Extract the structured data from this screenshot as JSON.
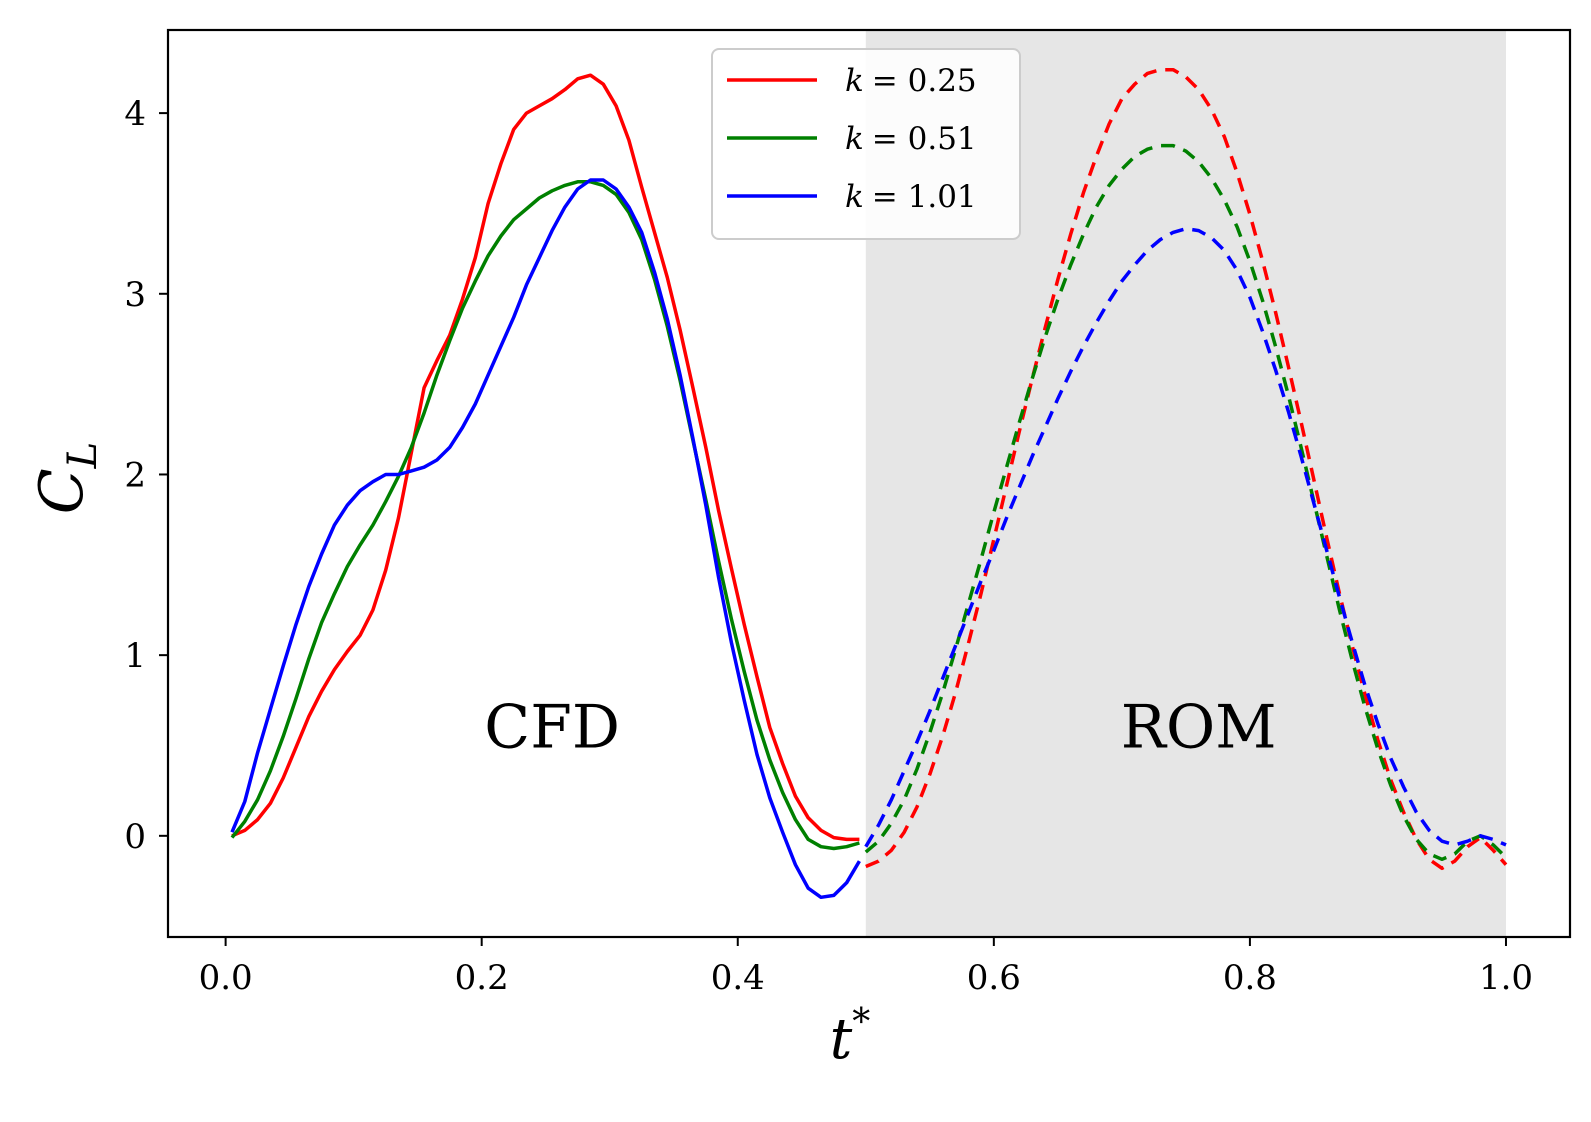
{
  "chart_data": {
    "type": "line",
    "xlabel": "t",
    "xlabel_superscript": "*",
    "ylabel": "C",
    "ylabel_subscript": "L",
    "xlim": [
      -0.045,
      1.05
    ],
    "ylim": [
      -0.56,
      4.46
    ],
    "xticks": [
      0.0,
      0.2,
      0.4,
      0.6,
      0.8,
      1.0
    ],
    "xtick_labels": [
      "0.0",
      "0.2",
      "0.4",
      "0.6",
      "0.8",
      "1.0"
    ],
    "yticks": [
      0,
      1,
      2,
      3,
      4
    ],
    "ytick_labels": [
      "0",
      "1",
      "2",
      "3",
      "4"
    ],
    "shaded_region": {
      "x_start": 0.5,
      "x_end": 1.0,
      "color": "#e6e6e6"
    },
    "annotations": [
      {
        "text": "CFD",
        "x": 0.255,
        "y": 0.6
      },
      {
        "text": "ROM",
        "x": 0.76,
        "y": 0.6
      }
    ],
    "legend": {
      "location": "upper-center",
      "entries": [
        {
          "label_var": "k",
          "label_value": "= 0.25",
          "color": "#ff0000"
        },
        {
          "label_var": "k",
          "label_value": "= 0.51",
          "color": "#008000"
        },
        {
          "label_var": "k",
          "label_value": "= 1.01",
          "color": "#0000ff"
        }
      ]
    },
    "series": [
      {
        "name": "k = 0.25",
        "color": "#ff0000",
        "cfd": {
          "x": [
            0.005,
            0.015,
            0.025,
            0.035,
            0.045,
            0.055,
            0.065,
            0.075,
            0.085,
            0.095,
            0.105,
            0.115,
            0.125,
            0.135,
            0.145,
            0.155,
            0.165,
            0.175,
            0.185,
            0.195,
            0.205,
            0.215,
            0.225,
            0.235,
            0.245,
            0.255,
            0.265,
            0.275,
            0.285,
            0.295,
            0.305,
            0.315,
            0.325,
            0.335,
            0.345,
            0.355,
            0.365,
            0.375,
            0.385,
            0.395,
            0.405,
            0.415,
            0.425,
            0.435,
            0.445,
            0.455,
            0.465,
            0.475,
            0.485,
            0.495
          ],
          "y": [
            0.0,
            0.03,
            0.09,
            0.18,
            0.32,
            0.49,
            0.66,
            0.8,
            0.92,
            1.02,
            1.11,
            1.25,
            1.47,
            1.76,
            2.12,
            2.48,
            2.63,
            2.77,
            2.97,
            3.2,
            3.5,
            3.72,
            3.91,
            4.0,
            4.04,
            4.08,
            4.13,
            4.19,
            4.21,
            4.16,
            4.04,
            3.85,
            3.59,
            3.34,
            3.09,
            2.8,
            2.48,
            2.15,
            1.8,
            1.48,
            1.17,
            0.88,
            0.6,
            0.4,
            0.22,
            0.1,
            0.03,
            -0.01,
            -0.02,
            -0.02
          ]
        },
        "rom": {
          "x": [
            0.5,
            0.51,
            0.52,
            0.53,
            0.54,
            0.55,
            0.56,
            0.57,
            0.58,
            0.59,
            0.6,
            0.61,
            0.62,
            0.63,
            0.64,
            0.65,
            0.66,
            0.67,
            0.68,
            0.69,
            0.7,
            0.71,
            0.72,
            0.73,
            0.74,
            0.75,
            0.76,
            0.77,
            0.78,
            0.79,
            0.8,
            0.81,
            0.82,
            0.83,
            0.84,
            0.85,
            0.86,
            0.87,
            0.88,
            0.89,
            0.9,
            0.91,
            0.92,
            0.93,
            0.94,
            0.95,
            0.96,
            0.97,
            0.98,
            0.99,
            1.0
          ],
          "y": [
            -0.17,
            -0.14,
            -0.08,
            0.02,
            0.16,
            0.34,
            0.55,
            0.79,
            1.06,
            1.34,
            1.64,
            1.94,
            2.24,
            2.53,
            2.81,
            3.08,
            3.33,
            3.56,
            3.76,
            3.94,
            4.08,
            4.16,
            4.22,
            4.24,
            4.24,
            4.2,
            4.13,
            4.02,
            3.87,
            3.67,
            3.44,
            3.18,
            2.9,
            2.6,
            2.29,
            1.97,
            1.65,
            1.34,
            1.05,
            0.78,
            0.53,
            0.31,
            0.13,
            -0.02,
            -0.13,
            -0.18,
            -0.14,
            -0.06,
            -0.01,
            -0.08,
            -0.16
          ]
        }
      },
      {
        "name": "k = 0.51",
        "color": "#008000",
        "cfd": {
          "x": [
            0.005,
            0.015,
            0.025,
            0.035,
            0.045,
            0.055,
            0.065,
            0.075,
            0.085,
            0.095,
            0.105,
            0.115,
            0.125,
            0.135,
            0.145,
            0.155,
            0.165,
            0.175,
            0.185,
            0.195,
            0.205,
            0.215,
            0.225,
            0.235,
            0.245,
            0.255,
            0.265,
            0.275,
            0.285,
            0.295,
            0.305,
            0.315,
            0.325,
            0.335,
            0.345,
            0.355,
            0.365,
            0.375,
            0.385,
            0.395,
            0.405,
            0.415,
            0.425,
            0.435,
            0.445,
            0.455,
            0.465,
            0.475,
            0.485,
            0.495
          ],
          "y": [
            -0.01,
            0.08,
            0.2,
            0.36,
            0.55,
            0.76,
            0.98,
            1.18,
            1.34,
            1.49,
            1.61,
            1.72,
            1.85,
            1.99,
            2.15,
            2.34,
            2.55,
            2.74,
            2.92,
            3.07,
            3.21,
            3.32,
            3.41,
            3.47,
            3.53,
            3.57,
            3.6,
            3.62,
            3.62,
            3.6,
            3.55,
            3.45,
            3.3,
            3.08,
            2.82,
            2.52,
            2.19,
            1.86,
            1.52,
            1.2,
            0.91,
            0.64,
            0.42,
            0.24,
            0.09,
            -0.02,
            -0.06,
            -0.07,
            -0.06,
            -0.04
          ]
        },
        "rom": {
          "x": [
            0.5,
            0.51,
            0.52,
            0.53,
            0.54,
            0.55,
            0.56,
            0.57,
            0.58,
            0.59,
            0.6,
            0.61,
            0.62,
            0.63,
            0.64,
            0.65,
            0.66,
            0.67,
            0.68,
            0.69,
            0.7,
            0.71,
            0.72,
            0.73,
            0.74,
            0.75,
            0.76,
            0.77,
            0.78,
            0.79,
            0.8,
            0.81,
            0.82,
            0.83,
            0.84,
            0.85,
            0.86,
            0.87,
            0.88,
            0.89,
            0.9,
            0.91,
            0.92,
            0.93,
            0.94,
            0.95,
            0.96,
            0.97,
            0.98,
            0.99,
            1.0
          ],
          "y": [
            -0.09,
            -0.03,
            0.07,
            0.2,
            0.37,
            0.57,
            0.79,
            1.03,
            1.28,
            1.53,
            1.79,
            2.04,
            2.29,
            2.53,
            2.76,
            2.97,
            3.16,
            3.33,
            3.48,
            3.6,
            3.69,
            3.76,
            3.8,
            3.82,
            3.82,
            3.79,
            3.73,
            3.64,
            3.52,
            3.37,
            3.18,
            2.96,
            2.71,
            2.44,
            2.15,
            1.85,
            1.55,
            1.25,
            0.97,
            0.71,
            0.48,
            0.28,
            0.11,
            -0.02,
            -0.1,
            -0.13,
            -0.1,
            -0.03,
            0.0,
            -0.05,
            -0.12
          ]
        }
      },
      {
        "name": "k = 1.01",
        "color": "#0000ff",
        "cfd": {
          "x": [
            0.005,
            0.015,
            0.025,
            0.035,
            0.045,
            0.055,
            0.065,
            0.075,
            0.085,
            0.095,
            0.105,
            0.115,
            0.125,
            0.135,
            0.145,
            0.155,
            0.165,
            0.175,
            0.185,
            0.195,
            0.205,
            0.215,
            0.225,
            0.235,
            0.245,
            0.255,
            0.265,
            0.275,
            0.285,
            0.295,
            0.305,
            0.315,
            0.325,
            0.335,
            0.345,
            0.355,
            0.365,
            0.375,
            0.385,
            0.395,
            0.405,
            0.415,
            0.425,
            0.435,
            0.445,
            0.455,
            0.465,
            0.475,
            0.485,
            0.495
          ],
          "y": [
            0.02,
            0.19,
            0.46,
            0.7,
            0.94,
            1.17,
            1.38,
            1.56,
            1.72,
            1.83,
            1.91,
            1.96,
            2.0,
            2.0,
            2.02,
            2.04,
            2.08,
            2.15,
            2.26,
            2.39,
            2.55,
            2.71,
            2.87,
            3.05,
            3.2,
            3.35,
            3.48,
            3.58,
            3.63,
            3.63,
            3.58,
            3.48,
            3.34,
            3.12,
            2.86,
            2.55,
            2.2,
            1.83,
            1.43,
            1.07,
            0.75,
            0.45,
            0.21,
            0.02,
            -0.16,
            -0.29,
            -0.34,
            -0.33,
            -0.26,
            -0.14
          ]
        },
        "rom": {
          "x": [
            0.5,
            0.51,
            0.52,
            0.53,
            0.54,
            0.55,
            0.56,
            0.57,
            0.58,
            0.59,
            0.6,
            0.61,
            0.62,
            0.63,
            0.64,
            0.65,
            0.66,
            0.67,
            0.68,
            0.69,
            0.7,
            0.71,
            0.72,
            0.73,
            0.74,
            0.75,
            0.76,
            0.77,
            0.78,
            0.79,
            0.8,
            0.81,
            0.82,
            0.83,
            0.84,
            0.85,
            0.86,
            0.87,
            0.88,
            0.89,
            0.9,
            0.91,
            0.92,
            0.93,
            0.94,
            0.95,
            0.96,
            0.97,
            0.98,
            0.99,
            1.0
          ],
          "y": [
            -0.06,
            0.06,
            0.2,
            0.36,
            0.52,
            0.69,
            0.87,
            1.05,
            1.23,
            1.41,
            1.58,
            1.76,
            1.93,
            2.1,
            2.26,
            2.42,
            2.57,
            2.71,
            2.84,
            2.96,
            3.07,
            3.16,
            3.24,
            3.3,
            3.34,
            3.36,
            3.35,
            3.31,
            3.24,
            3.13,
            2.98,
            2.79,
            2.58,
            2.35,
            2.1,
            1.84,
            1.58,
            1.32,
            1.07,
            0.83,
            0.62,
            0.43,
            0.27,
            0.13,
            0.03,
            -0.03,
            -0.05,
            -0.03,
            0.0,
            -0.02,
            -0.05
          ]
        }
      }
    ]
  }
}
